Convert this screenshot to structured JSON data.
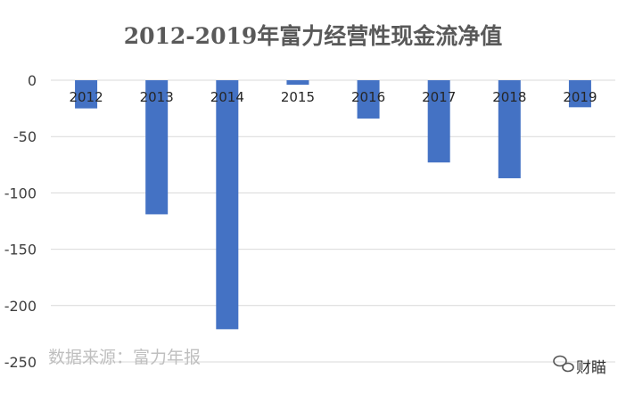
{
  "chart_data": {
    "type": "bar",
    "title": "2012-2019年富力经营性现金流净值",
    "categories": [
      "2012",
      "2013",
      "2014",
      "2015",
      "2016",
      "2017",
      "2018",
      "2019"
    ],
    "values": [
      -25,
      -119,
      -221,
      -4,
      -34,
      -73,
      -87,
      -24
    ],
    "ylim": [
      -250,
      0
    ],
    "yticks": [
      0,
      -50,
      -100,
      -150,
      -200,
      -250
    ],
    "grid": true,
    "xlabel": "",
    "ylabel": "",
    "bar_color": "#4472C4",
    "grid_color": "#d9d9d9"
  },
  "source": "数据来源：富力年报",
  "watermark": {
    "icon": "wechat-icon",
    "text": "财瞄"
  }
}
